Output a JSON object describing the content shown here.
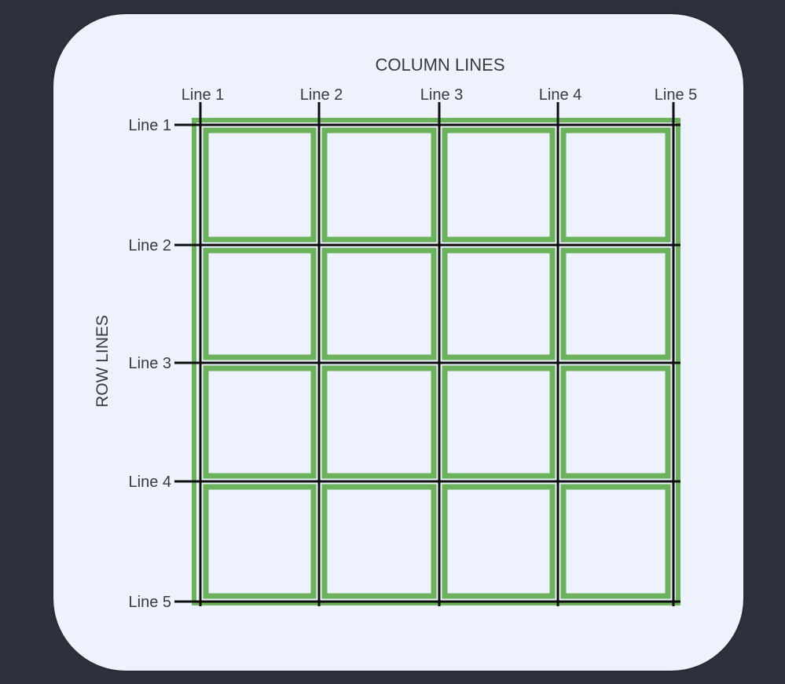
{
  "diagram": {
    "column_axis_title": "COLUMN LINES",
    "row_axis_title": "ROW LINES",
    "column_lines": [
      {
        "label": "Line 1"
      },
      {
        "label": "Line 2"
      },
      {
        "label": "Line 3"
      },
      {
        "label": "Line 4"
      },
      {
        "label": "Line 5"
      }
    ],
    "row_lines": [
      {
        "label": "Line 1"
      },
      {
        "label": "Line 2"
      },
      {
        "label": "Line 3"
      },
      {
        "label": "Line 4"
      },
      {
        "label": "Line 5"
      }
    ],
    "grid": {
      "columns": 4,
      "rows": 4
    },
    "colors": {
      "background": "#2d303d",
      "card": "#edf2fc",
      "cell_border": "#6cb25c",
      "grid_line": "#0e0e0e",
      "text": "#3a3a3a"
    }
  }
}
